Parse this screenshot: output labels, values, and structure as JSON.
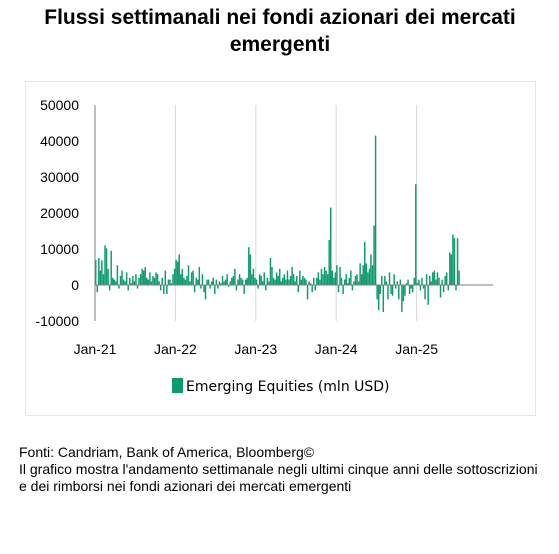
{
  "title": "Flussi settimanali nei fondi azionari dei mercati emergenti",
  "footer": {
    "source": "Fonti: Candriam, Bank of America, Bloomberg©",
    "description": "Il grafico mostra l'andamento settimanale negli ultimi cinque anni delle sottoscrizioni e dei rimborsi nei fondi azionari dei mercati emergenti"
  },
  "colors": {
    "series": "#0f9a6e",
    "grid": "#d9d9d9",
    "axis": "#7f7f7f"
  },
  "chart_data": {
    "type": "bar",
    "title": "Flussi settimanali nei fondi azionari dei mercati emergenti",
    "xlabel": "",
    "ylabel": "",
    "ylim": [
      -10000,
      50000
    ],
    "yticks": [
      "50000",
      "40000",
      "30000",
      "20000",
      "10000",
      "0",
      "-10000"
    ],
    "ytick_values": [
      50000,
      40000,
      30000,
      20000,
      10000,
      0,
      -10000
    ],
    "xticks": [
      "Jan-21",
      "Jan-22",
      "Jan-23",
      "Jan-24",
      "Jan-25"
    ],
    "grid": "vertical at year starts",
    "legend_position": "bottom",
    "series": [
      {
        "name": "Emerging Equities  (mln USD)",
        "color": "#0f9a6e",
        "x_start": "2021-01-04",
        "interval": "weekly",
        "values": [
          7000,
          -2000,
          7500,
          4000,
          6800,
          3000,
          11000,
          10200,
          4500,
          -1500,
          9500,
          2000,
          1500,
          1000,
          5500,
          -1000,
          2500,
          4000,
          1500,
          1000,
          3500,
          -1500,
          2000,
          500,
          2500,
          1000,
          3000,
          -1000,
          2000,
          3000,
          4500,
          4000,
          5000,
          2000,
          1500,
          3500,
          1000,
          2500,
          2000,
          3500,
          3000,
          1000,
          -1500,
          2000,
          -2500,
          4000,
          -2500,
          1500,
          1500,
          500,
          3000,
          4500,
          7000,
          6500,
          8500,
          3000,
          4500,
          2000,
          1500,
          2500,
          5500,
          1000,
          3500,
          4000,
          -2000,
          2000,
          1500,
          5000,
          -1000,
          3000,
          -2000,
          -4000,
          1500,
          1500,
          -1000,
          1000,
          2000,
          -2500,
          1500,
          -1000,
          1000,
          500,
          2500,
          1000,
          1500,
          3000,
          -500,
          1000,
          2000,
          2500,
          4500,
          -1500,
          1500,
          3000,
          2000,
          1500,
          -2500,
          1500,
          2000,
          10500,
          8500,
          3000,
          4500,
          2000,
          1500,
          -1000,
          3000,
          2500,
          1000,
          3500,
          -1500,
          2000,
          1000,
          7500,
          5000,
          2000,
          1500,
          3500,
          2500,
          4500,
          1000,
          2000,
          3000,
          1500,
          4000,
          1500,
          2500,
          5000,
          3000,
          1000,
          2500,
          -2000,
          4000,
          1500,
          2500,
          2000,
          1500,
          -4000,
          1000,
          500,
          -2000,
          2000,
          -1500,
          2000,
          3500,
          1500,
          4500,
          3000,
          5000,
          4000,
          3000,
          12500,
          21500,
          4000,
          2000,
          3500,
          5500,
          -2000,
          5000,
          2000,
          -2500,
          1500,
          3000,
          500,
          2000,
          4000,
          -1500,
          1000,
          2500,
          3000,
          1000,
          6000,
          3000,
          5500,
          12000,
          6000,
          3500,
          4500,
          8500,
          5500,
          16500,
          41500,
          -4000,
          -7000,
          -2500,
          2500,
          -7500,
          2500,
          1000,
          -4000,
          3500,
          -2500,
          -3000,
          3000,
          -1000,
          1000,
          -4000,
          1500,
          -7500,
          -4500,
          -3000,
          500,
          1500,
          -2500,
          -1000,
          -2000,
          2000,
          28000,
          500,
          1500,
          -1500,
          2000,
          -1000,
          -4000,
          3000,
          -5500,
          2500,
          1000,
          3500,
          4000,
          1500,
          3500,
          2000,
          -3500,
          1500,
          -2000,
          2500,
          3500,
          -1500,
          9000,
          8500,
          14000,
          13000,
          -1500,
          13000,
          4000
        ]
      }
    ]
  }
}
